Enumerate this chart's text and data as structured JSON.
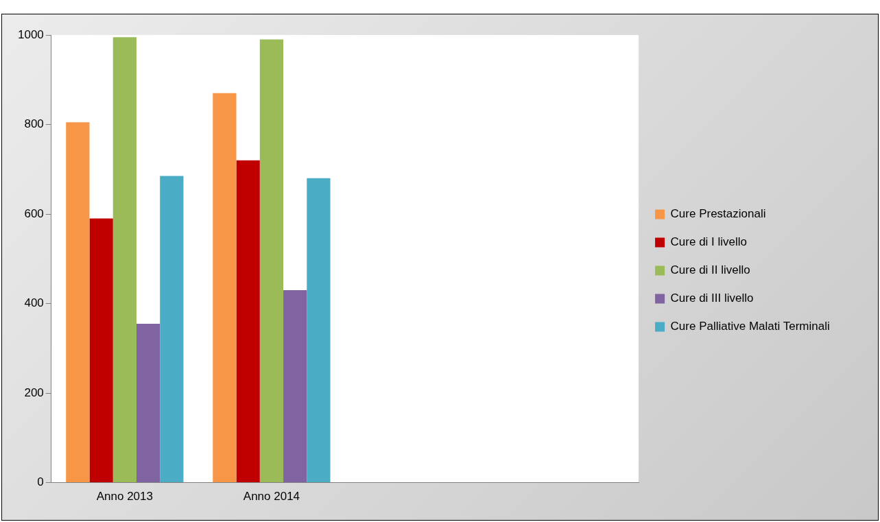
{
  "chart_data": {
    "type": "bar",
    "categories": [
      "Anno 2013",
      "Anno 2014",
      null,
      null
    ],
    "series": [
      {
        "name": "Cure Prestazionali",
        "color": "#f79646",
        "values": [
          805,
          870,
          null,
          null
        ]
      },
      {
        "name": "Cure di I livello",
        "color": "#c00000",
        "values": [
          590,
          720,
          null,
          null
        ]
      },
      {
        "name": "Cure di II livello",
        "color": "#9bbb59",
        "values": [
          995,
          990,
          null,
          null
        ]
      },
      {
        "name": "Cure di III livello",
        "color": "#8064a2",
        "values": [
          355,
          430,
          null,
          null
        ]
      },
      {
        "name": "Cure Palliative Malati Terminali",
        "color": "#4bacc6",
        "values": [
          685,
          680,
          null,
          null
        ]
      }
    ],
    "ylim": [
      0,
      1000
    ],
    "yticks": [
      0,
      200,
      400,
      600,
      800,
      1000
    ],
    "grid": false,
    "legend": "right"
  }
}
